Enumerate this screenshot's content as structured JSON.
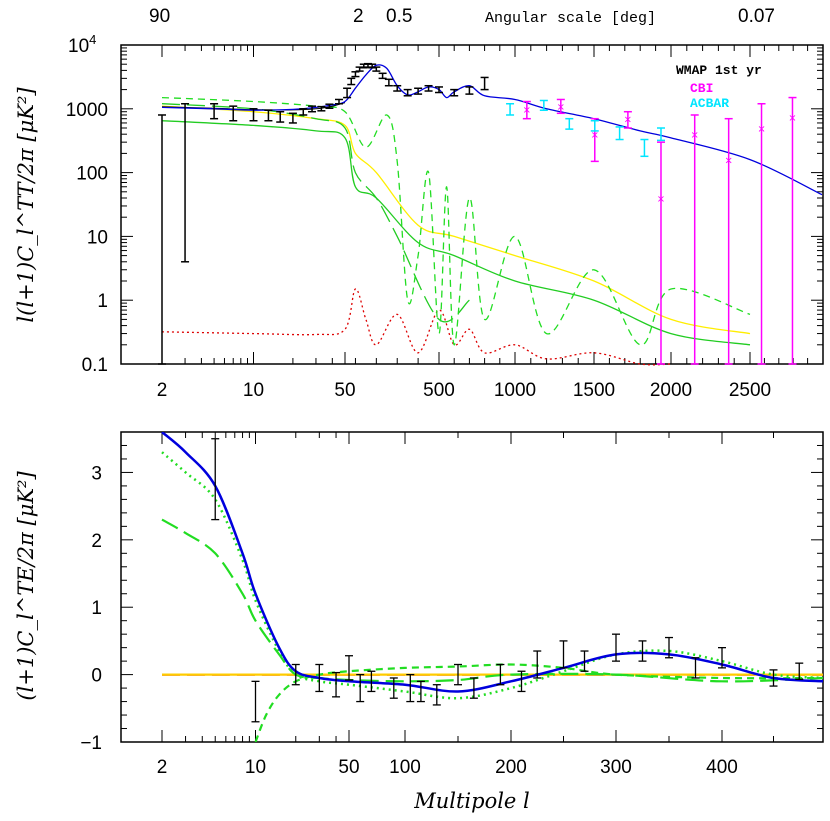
{
  "chart_data": [
    {
      "type": "line",
      "panel": "top",
      "xlabel": "",
      "ylabel": "l(l+1)C_l^TT/2π [μK²]",
      "y_scale": "log",
      "ylim": [
        0.1,
        10000
      ],
      "y_ticks": [
        {
          "value": 10000,
          "base": "10",
          "exp": "4"
        },
        {
          "value": 1000,
          "label": "1000"
        },
        {
          "value": 100,
          "label": "100"
        },
        {
          "value": 10,
          "label": "10"
        },
        {
          "value": 1,
          "label": "1"
        },
        {
          "value": 0.1,
          "label": "0.1"
        }
      ],
      "x_tick_labels": [
        "2",
        "10",
        "50",
        "500",
        "1000",
        "1500",
        "2000",
        "2500"
      ],
      "top_axis": {
        "title": "Angular scale [deg]",
        "labels": [
          "90",
          "2",
          "0.5",
          "0.07"
        ]
      },
      "legend": [
        {
          "label": "WMAP 1st yr",
          "color": "#000000"
        },
        {
          "label": "CBI",
          "color": "#ff00ff"
        },
        {
          "label": "ACBAR",
          "color": "#00e5ff"
        }
      ],
      "series": [
        {
          "color": "#0000dd",
          "style": "solid",
          "l": [
            2,
            5,
            10,
            20,
            30,
            40,
            50,
            100,
            150,
            200,
            250,
            300,
            350,
            400,
            450,
            500,
            550,
            600,
            700,
            800,
            1000,
            1200,
            1500,
            1800,
            2000,
            2500,
            3000
          ],
          "values": [
            1050,
            1000,
            950,
            980,
            1050,
            1150,
            1300,
            2100,
            3400,
            4800,
            4300,
            2300,
            1650,
            1850,
            2200,
            2000,
            1500,
            1850,
            2300,
            1600,
            1400,
            1000,
            700,
            450,
            350,
            160,
            45
          ]
        },
        {
          "color": "#000000",
          "style": "solid-thin",
          "l": [
            2,
            5,
            10,
            20,
            30,
            40,
            50
          ],
          "values": [
            1080,
            1020,
            970,
            960,
            1000,
            1100,
            1250
          ]
        },
        {
          "color": "#22dd22",
          "style": "short-dash",
          "l": [
            2,
            10,
            30,
            50,
            150,
            250,
            300,
            350,
            400,
            450,
            500,
            550,
            600,
            700,
            800,
            1000,
            1200,
            1500,
            1800,
            2000,
            2500
          ],
          "values": [
            1500,
            1300,
            1100,
            900,
            250,
            800,
            150,
            1,
            5,
            100,
            0.3,
            60,
            0.2,
            40,
            0.5,
            10,
            0.3,
            3,
            0.2,
            1.5,
            0.6
          ]
        },
        {
          "color": "#22cc22",
          "style": "long-dash",
          "l": [
            2,
            10,
            30,
            50,
            100,
            200,
            300,
            500,
            700
          ],
          "values": [
            1200,
            1000,
            700,
            500,
            100,
            40,
            10,
            0.5,
            1
          ]
        },
        {
          "color": "#ffee00",
          "style": "solid",
          "l": [
            2,
            10,
            30,
            50,
            100,
            200,
            400,
            600,
            1000,
            1500,
            2000,
            2500
          ],
          "values": [
            1100,
            900,
            700,
            550,
            200,
            100,
            15,
            10,
            5,
            2,
            0.5,
            0.3
          ]
        },
        {
          "color": "#22cc22",
          "style": "solid",
          "l": [
            2,
            10,
            30,
            50,
            100,
            200,
            400,
            600,
            1000,
            1500,
            2000,
            2500
          ],
          "values": [
            650,
            550,
            450,
            350,
            60,
            40,
            8,
            5,
            2,
            1,
            0.3,
            0.2
          ]
        },
        {
          "color": "#dd0000",
          "style": "dotted",
          "l": [
            2,
            10,
            30,
            50,
            100,
            150,
            200,
            300,
            400,
            500,
            600,
            700,
            800,
            1000,
            1200,
            1500,
            1800,
            2000
          ],
          "values": [
            0.32,
            0.3,
            0.29,
            0.35,
            1.5,
            0.5,
            0.2,
            0.6,
            0.15,
            0.7,
            0.2,
            0.35,
            0.15,
            0.2,
            0.12,
            0.15,
            0.1,
            0.1
          ]
        }
      ]
    },
    {
      "type": "line",
      "panel": "bottom",
      "xlabel": "Multipole l",
      "ylabel": "(l+1)C_l^TE/2π [μK²]",
      "ylim": [
        -1,
        3.6
      ],
      "y_ticks": [
        -1,
        0,
        1,
        2,
        3
      ],
      "x_tick_labels": [
        "2",
        "10",
        "50",
        "100",
        "200",
        "300",
        "400"
      ],
      "series": [
        {
          "color": "#0000dd",
          "style": "solid",
          "l": [
            2,
            3,
            5,
            8,
            10,
            15,
            20,
            30,
            50,
            100,
            150,
            200,
            250,
            300,
            350,
            400,
            450,
            500
          ],
          "values": [
            3.6,
            3.3,
            2.8,
            1.8,
            1.2,
            0.4,
            0.05,
            -0.05,
            -0.1,
            -0.15,
            -0.25,
            -0.1,
            0.1,
            0.3,
            0.3,
            0.15,
            -0.05,
            -0.1
          ]
        },
        {
          "color": "#22dd22",
          "style": "dotted",
          "l": [
            2,
            3,
            5,
            8,
            10,
            15,
            20,
            30,
            50,
            100,
            150,
            200,
            250,
            300,
            350,
            400,
            450,
            500
          ],
          "values": [
            3.3,
            3.0,
            2.6,
            1.7,
            1.1,
            0.35,
            0.0,
            -0.1,
            -0.15,
            -0.25,
            -0.35,
            -0.2,
            0.05,
            0.3,
            0.35,
            0.2,
            0.0,
            -0.05
          ]
        },
        {
          "color": "#22dd22",
          "style": "long-dash",
          "l": [
            2,
            3,
            5,
            8,
            10,
            15,
            20,
            30,
            50,
            100,
            150,
            200,
            300,
            400,
            500
          ],
          "values": [
            2.3,
            2.1,
            1.8,
            1.2,
            0.8,
            0.3,
            0.0,
            -0.05,
            -0.08,
            -0.1,
            -0.08,
            0.0,
            0.0,
            -0.1,
            -0.05
          ]
        },
        {
          "color": "#22dd22",
          "style": "short-dash",
          "l": [
            10,
            12,
            15,
            20,
            30,
            50,
            100,
            150,
            200,
            250,
            300,
            400,
            500
          ],
          "values": [
            -1.0,
            -0.6,
            -0.3,
            -0.1,
            0.0,
            0.05,
            0.1,
            0.12,
            0.15,
            0.1,
            0.0,
            -0.05,
            -0.05
          ]
        },
        {
          "color": "#ffcc00",
          "style": "solid",
          "l": [
            2,
            500
          ],
          "values": [
            0.0,
            0.0
          ]
        },
        {
          "color": "#dd0000",
          "style": "long-dash",
          "l": [
            2,
            500
          ],
          "values": [
            0.0,
            0.0
          ]
        }
      ]
    }
  ]
}
